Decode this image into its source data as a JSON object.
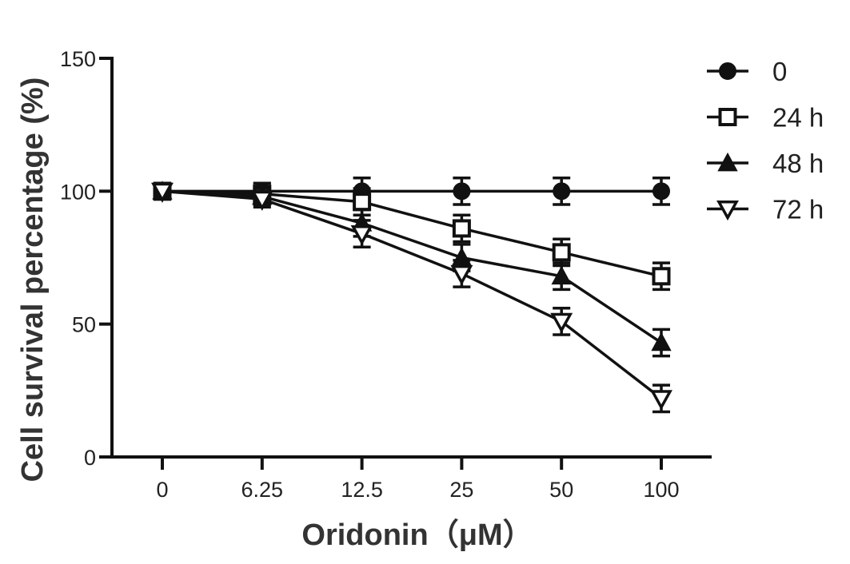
{
  "chart_data": {
    "type": "line",
    "title": "",
    "xlabel": "Oridonin（μM）",
    "ylabel": "Cell survival percentage (%)",
    "categories": [
      "0",
      "6.25",
      "12.5",
      "25",
      "50",
      "100"
    ],
    "ylim": [
      0,
      150
    ],
    "yticks": [
      0,
      50,
      100,
      150
    ],
    "grid": false,
    "legend_position": "top-right",
    "series": [
      {
        "name": "0",
        "marker": "circle-filled",
        "values": [
          100,
          100,
          100,
          100,
          100,
          100
        ],
        "errors": [
          3,
          3,
          5,
          5,
          5,
          5
        ]
      },
      {
        "name": "24 h",
        "marker": "square-open",
        "values": [
          100,
          99,
          96,
          86,
          77,
          68
        ],
        "errors": [
          3,
          4,
          5,
          5,
          5,
          5
        ]
      },
      {
        "name": "48 h",
        "marker": "triangle-up-filled",
        "values": [
          100,
          98,
          88,
          75,
          68,
          43
        ],
        "errors": [
          3,
          3,
          5,
          5,
          5,
          5
        ]
      },
      {
        "name": "72 h",
        "marker": "triangle-down-open",
        "values": [
          100,
          97,
          84,
          69,
          51,
          22
        ],
        "errors": [
          3,
          3,
          5,
          5,
          5,
          5
        ]
      }
    ]
  }
}
